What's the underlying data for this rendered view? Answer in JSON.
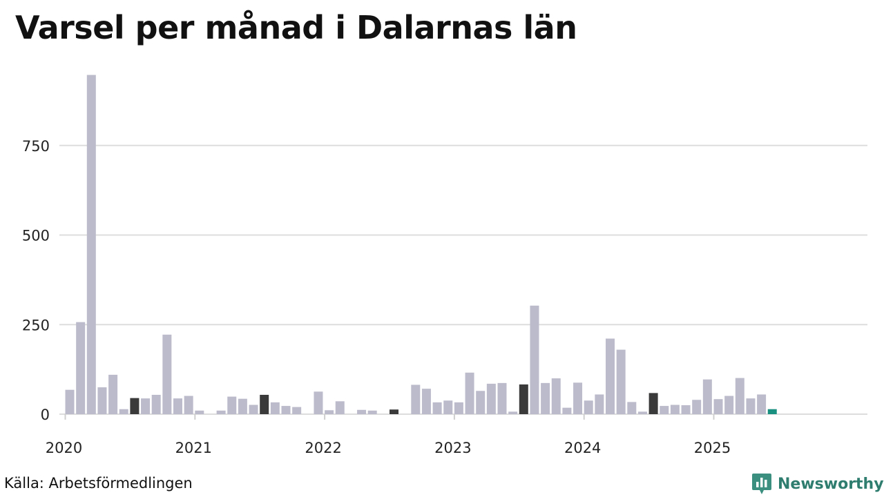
{
  "title": "Varsel per månad i Dalarnas län",
  "source": "Källa: Arbetsförmedlingen",
  "brand": {
    "name": "Newsworthy",
    "icon": "bar-chart-bubble-icon"
  },
  "colors": {
    "bar": "#bcbbcb",
    "bar_july": "#3a3a3a",
    "bar_latest": "#1a9080",
    "grid": "#dddddd",
    "brand": "#2e7d6e"
  },
  "chart_data": {
    "type": "bar",
    "title": "Varsel per månad i Dalarnas län",
    "xlabel": "",
    "ylabel": "",
    "ylim": [
      0,
      950
    ],
    "yticks": [
      0,
      250,
      500,
      750
    ],
    "xticks": [
      "2020",
      "2021",
      "2022",
      "2023",
      "2024",
      "2025"
    ],
    "grid": true,
    "categories": [
      "2020-01",
      "2020-02",
      "2020-03",
      "2020-04",
      "2020-05",
      "2020-06",
      "2020-07",
      "2020-08",
      "2020-09",
      "2020-10",
      "2020-11",
      "2020-12",
      "2021-01",
      "2021-02",
      "2021-03",
      "2021-04",
      "2021-05",
      "2021-06",
      "2021-07",
      "2021-08",
      "2021-09",
      "2021-10",
      "2021-11",
      "2021-12",
      "2022-01",
      "2022-02",
      "2022-03",
      "2022-04",
      "2022-05",
      "2022-06",
      "2022-07",
      "2022-08",
      "2022-09",
      "2022-10",
      "2022-11",
      "2022-12",
      "2023-01",
      "2023-02",
      "2023-03",
      "2023-04",
      "2023-05",
      "2023-06",
      "2023-07",
      "2023-08",
      "2023-09",
      "2023-10",
      "2023-11",
      "2023-12",
      "2024-01",
      "2024-02",
      "2024-03",
      "2024-04",
      "2024-05",
      "2024-06",
      "2024-07",
      "2024-08",
      "2024-09",
      "2024-10",
      "2024-11",
      "2024-12",
      "2025-01",
      "2025-02",
      "2025-03",
      "2025-04",
      "2025-05",
      "2025-06",
      "2025-07",
      "2025-08",
      "2025-09",
      "2025-10",
      "2025-11",
      "2025-12"
    ],
    "values": [
      68,
      257,
      947,
      75,
      110,
      14,
      45,
      44,
      54,
      222,
      44,
      51,
      10,
      0,
      10,
      49,
      43,
      26,
      54,
      33,
      23,
      20,
      0,
      63,
      11,
      36,
      0,
      12,
      10,
      0,
      13,
      0,
      82,
      71,
      33,
      38,
      33,
      116,
      65,
      85,
      87,
      7,
      83,
      303,
      87,
      100,
      18,
      88,
      38,
      55,
      211,
      180,
      34,
      7,
      59,
      23,
      26,
      25,
      40,
      97,
      42,
      51,
      101,
      44,
      55,
      14,
      null,
      null,
      null,
      null,
      null,
      null
    ],
    "highlight": {
      "dark_month": "07",
      "latest": "2025-06"
    }
  }
}
